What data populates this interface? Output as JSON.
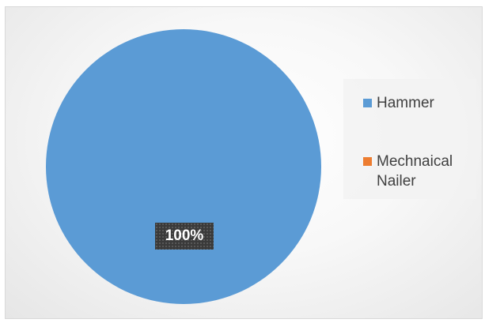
{
  "chart_data": {
    "type": "pie",
    "categories": [
      "Hammer",
      "Mechnaical Nailer"
    ],
    "values": [
      100,
      0
    ],
    "colors": [
      "#5b9bd5",
      "#ed7d31"
    ],
    "data_labels": [
      "100%"
    ],
    "legend_position": "right"
  }
}
